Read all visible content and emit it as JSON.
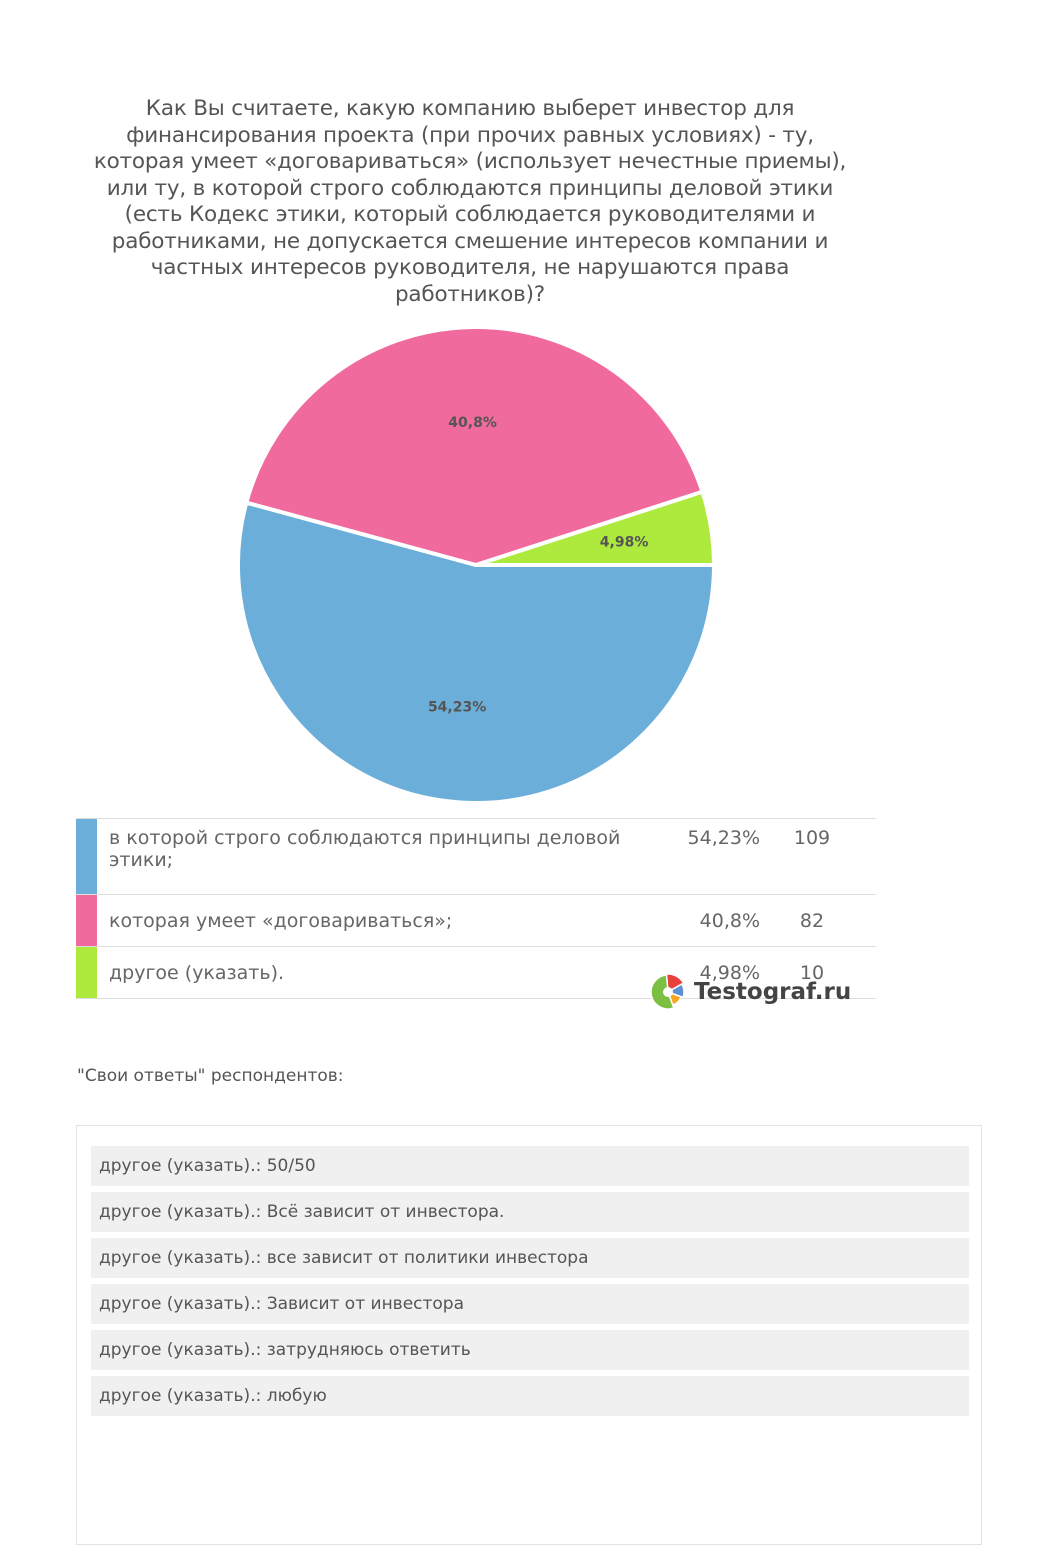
{
  "chart_data": {
    "type": "pie",
    "title": "Как Вы считаете, какую компанию выберет инвестор для финансирования проекта  (при прочих равных условиях) - ту, которая умеет «договариваться» (использует нечестные приемы), или  ту, в которой строго соблюдаются принципы деловой этики (есть Кодекс этики, который соблюдается руководителями и работниками, не допускается смешение интересов компании и частных интересов руководителя, не нарушаются права работников)?",
    "slices": [
      {
        "label": "в которой строго соблюдаются принципы деловой этики;",
        "value": 54.23,
        "percent_label": "54,23%",
        "legend_percent": "54,23%",
        "count": "109",
        "color": "#6aaed9"
      },
      {
        "label": "которая умеет «договариваться»;",
        "value": 40.8,
        "percent_label": "40,8%",
        "legend_percent": "40,8%",
        "count": "82",
        "color": "#f06a9e"
      },
      {
        "label": "другое (указать).",
        "value": 4.98,
        "percent_label": "4,98%",
        "legend_percent": "4,98%",
        "count": "10",
        "color": "#aeea3e"
      }
    ]
  },
  "logo": {
    "text": "Testograf.ru",
    "colors": [
      "#e8403c",
      "#5b8fd6",
      "#f5a623",
      "#7bc043"
    ]
  },
  "own_answers": {
    "heading": "\"Свои ответы\" респондентов:",
    "items": [
      "другое (указать).: 50/50",
      "другое (указать).: Всё зависит от инвестора.",
      "другое (указать).: все зависит от политики инвестора",
      "другое (указать).: Зависит от инвестора",
      "другое (указать).: затрудняюсь ответить",
      "другое (указать).: любую"
    ]
  }
}
